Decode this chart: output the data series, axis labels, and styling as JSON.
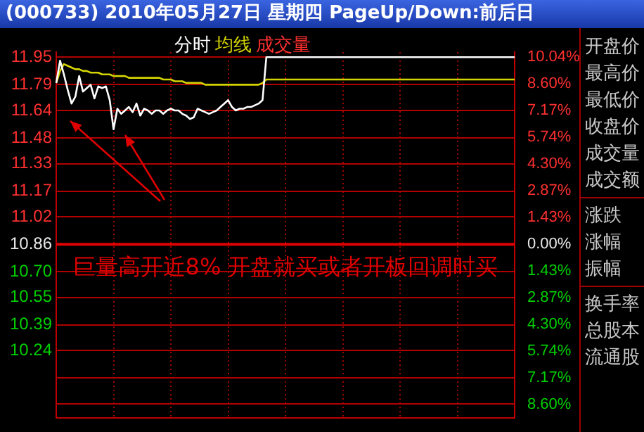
{
  "chart_data": {
    "type": "line",
    "title": "(000733)  2010年05月27日 星期四 PageUp/Down:前后日",
    "annotations": [
      "成交量",
      "巨量高开近8%  开盘就买或者开板回调时买",
      "开盘价",
      "最高价",
      "最低价",
      "收盘价",
      "成交量",
      "成交额",
      "涨跌",
      "涨幅",
      "振幅",
      "换手率",
      "总股本",
      "流通股"
    ],
    "categories": [
      null,
      null,
      null,
      null,
      null,
      null,
      null,
      null,
      null,
      null,
      null,
      null,
      null,
      null,
      null,
      null,
      null,
      null,
      null,
      null,
      null,
      null,
      null,
      null,
      null,
      null,
      null,
      null,
      null,
      null,
      null,
      null,
      null,
      null,
      null,
      null,
      null,
      null,
      null,
      null,
      null,
      null,
      null,
      null,
      null,
      null,
      null,
      null,
      null,
      null,
      null,
      null,
      null,
      null,
      null,
      null,
      null,
      null,
      null,
      null,
      null,
      null,
      null,
      null,
      null,
      null,
      null,
      null,
      null,
      null,
      null,
      null,
      null,
      null,
      null,
      null,
      null,
      null,
      null,
      null,
      null,
      null,
      null,
      null,
      null,
      null,
      null,
      null,
      null,
      null,
      null,
      null,
      null,
      null,
      null,
      null,
      null,
      null,
      null,
      null,
      null,
      null,
      null,
      null,
      null,
      null,
      null,
      null,
      null,
      null,
      null,
      null,
      null,
      null,
      null,
      null,
      null,
      null,
      null,
      null,
      null
    ],
    "series": [
      {
        "name": "分时",
        "color": "#ffffff",
        "values": [
          11.8,
          11.93,
          11.85,
          11.76,
          11.68,
          11.72,
          11.84,
          11.75,
          11.77,
          11.79,
          11.71,
          11.78,
          11.77,
          11.78,
          11.7,
          11.53,
          11.65,
          11.62,
          11.64,
          11.66,
          11.63,
          11.68,
          11.61,
          11.65,
          11.64,
          11.62,
          11.64,
          11.64,
          11.62,
          11.64,
          11.65,
          11.64,
          11.64,
          11.62,
          11.61,
          11.59,
          11.6,
          11.65,
          11.64,
          11.63,
          11.62,
          11.63,
          11.64,
          11.66,
          11.68,
          11.7,
          11.66,
          11.64,
          11.65,
          11.65,
          11.66,
          11.66,
          11.67,
          11.68,
          11.7,
          11.95,
          11.95,
          11.95,
          11.95,
          11.95,
          11.95,
          11.95,
          11.95,
          11.95,
          11.95,
          11.95,
          11.95,
          11.95,
          11.95,
          11.95,
          11.95,
          11.95,
          11.95,
          11.95,
          11.95,
          11.95,
          11.95,
          11.95,
          11.95,
          11.95,
          11.95,
          11.95,
          11.95,
          11.95,
          11.95,
          11.95,
          11.95,
          11.95,
          11.95,
          11.95,
          11.95,
          11.95,
          11.95,
          11.95,
          11.95,
          11.95,
          11.95,
          11.95,
          11.95,
          11.95,
          11.95,
          11.95,
          11.95,
          11.95,
          11.95,
          11.95,
          11.95,
          11.95,
          11.95,
          11.95,
          11.95,
          11.95,
          11.95,
          11.95,
          11.95,
          11.95,
          11.95,
          11.95,
          11.95,
          11.95,
          11.95
        ]
      },
      {
        "name": "均线",
        "color": "#d4d400",
        "values": [
          11.8,
          11.87,
          11.91,
          11.9,
          11.89,
          11.88,
          11.88,
          11.87,
          11.87,
          11.86,
          11.86,
          11.86,
          11.85,
          11.85,
          11.85,
          11.84,
          11.84,
          11.84,
          11.84,
          11.83,
          11.83,
          11.83,
          11.83,
          11.83,
          11.83,
          11.83,
          11.83,
          11.83,
          11.82,
          11.82,
          11.82,
          11.81,
          11.81,
          11.81,
          11.8,
          11.8,
          11.8,
          11.8,
          11.8,
          11.79,
          11.79,
          11.79,
          11.79,
          11.79,
          11.79,
          11.79,
          11.79,
          11.79,
          11.79,
          11.79,
          11.79,
          11.79,
          11.79,
          11.79,
          11.8,
          11.82,
          11.82,
          11.82,
          11.82,
          11.82,
          11.82,
          11.82,
          11.82,
          11.82,
          11.82,
          11.82,
          11.82,
          11.82,
          11.82,
          11.82,
          11.82,
          11.82,
          11.82,
          11.82,
          11.82,
          11.82,
          11.82,
          11.82,
          11.82,
          11.82,
          11.82,
          11.82,
          11.82,
          11.82,
          11.82,
          11.82,
          11.82,
          11.82,
          11.82,
          11.82,
          11.82,
          11.82,
          11.82,
          11.82,
          11.82,
          11.82,
          11.82,
          11.82,
          11.82,
          11.82,
          11.82,
          11.82,
          11.82,
          11.82,
          11.82,
          11.82,
          11.82,
          11.82,
          11.82,
          11.82,
          11.82,
          11.82,
          11.82,
          11.82,
          11.82,
          11.82,
          11.82,
          11.82,
          11.82,
          11.82,
          11.82
        ]
      }
    ],
    "ylim": [
      9.85,
      11.98
    ],
    "yticks": [
      11.95,
      11.79,
      11.64,
      11.48,
      11.33,
      11.17,
      11.02,
      10.86,
      {
        "value": 10.7,
        "label": "10.70"
      },
      10.55,
      10.39,
      10.24,
      {
        "value": 10.08,
        "label": null
      },
      {
        "value": 9.93,
        "label": null
      }
    ],
    "y2lim": [
      -9.3,
      10.31
    ],
    "y2ticks": [
      {
        "value": 10.04,
        "label": "10.04%"
      },
      {
        "value": 8.6,
        "label": "8.60%"
      },
      {
        "value": 7.17,
        "label": "7.17%"
      },
      {
        "value": 5.74,
        "label": "5.74%"
      },
      {
        "value": 4.3,
        "label": "4.30%"
      },
      {
        "value": 2.87,
        "label": "2.87%"
      },
      {
        "value": 1.43,
        "label": "1.43%"
      },
      {
        "value": 0,
        "label": "0.00%"
      },
      {
        "value": -1.43,
        "label": "1.43%"
      },
      {
        "value": -2.87,
        "label": "2.87%"
      },
      {
        "value": -4.3,
        "label": "4.30%"
      },
      {
        "value": -5.74,
        "label": "5.74%"
      },
      {
        "value": -7.17,
        "label": "7.17%"
      },
      {
        "value": -8.6,
        "label": "8.60%"
      }
    ],
    "ref_lines": [
      {
        "axis": "y",
        "value": 10.86,
        "color": "#e00000"
      }
    ],
    "grid": true,
    "marker": "none",
    "line_style": "solid"
  }
}
